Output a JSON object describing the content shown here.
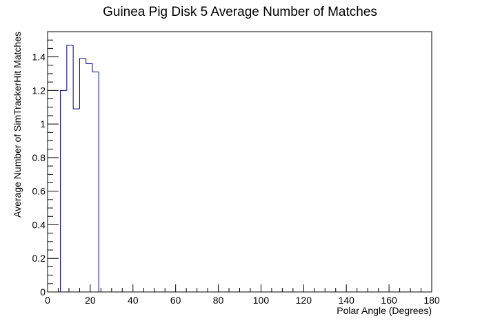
{
  "chart_data": {
    "type": "bar",
    "style": "step-histogram",
    "title": "Guinea Pig Disk 5 Average Number of Matches",
    "xlabel": "Polar Angle (Degrees)",
    "ylabel": "Average Number of SimTrackerHit Matches",
    "xlim": [
      0,
      180
    ],
    "ylim": [
      0,
      1.55
    ],
    "x_ticks": [
      0,
      20,
      40,
      60,
      80,
      100,
      120,
      140,
      160,
      180
    ],
    "y_ticks": [
      0,
      0.2,
      0.4,
      0.6,
      0.8,
      1,
      1.2,
      1.4
    ],
    "x_tick_labels": [
      "0",
      "20",
      "40",
      "60",
      "80",
      "100",
      "120",
      "140",
      "160",
      "180"
    ],
    "y_tick_labels": [
      "0",
      "0.2",
      "0.4",
      "0.6",
      "0.8",
      "1",
      "1.2",
      "1.4"
    ],
    "bin_width": 3,
    "bins": [
      {
        "x0": 6,
        "x1": 9,
        "value": 1.2
      },
      {
        "x0": 9,
        "x1": 12,
        "value": 1.47
      },
      {
        "x0": 12,
        "x1": 15,
        "value": 1.09
      },
      {
        "x0": 15,
        "x1": 18,
        "value": 1.39
      },
      {
        "x0": 18,
        "x1": 21,
        "value": 1.36
      },
      {
        "x0": 21,
        "x1": 24,
        "value": 1.31
      }
    ],
    "grid": false,
    "legend": "none",
    "line_color": "#000080"
  }
}
